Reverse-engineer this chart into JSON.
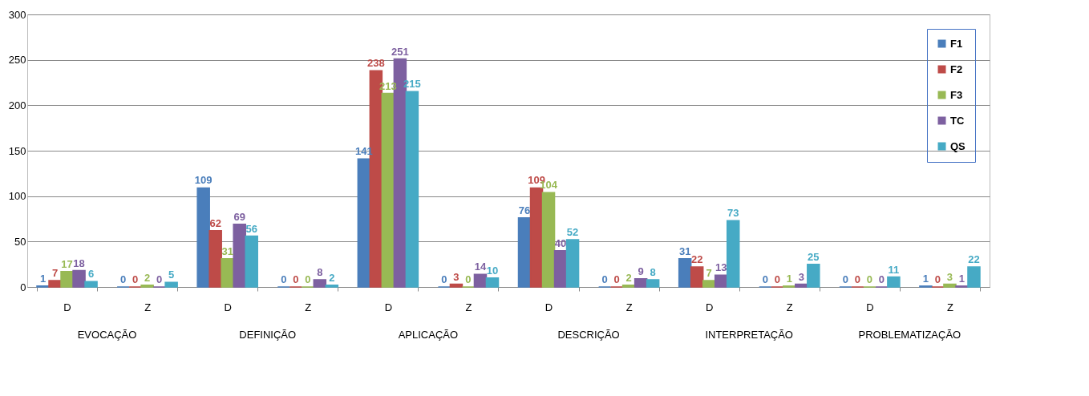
{
  "chart_data": {
    "type": "bar",
    "categories": [
      "D",
      "Z",
      "D",
      "Z",
      "D",
      "Z",
      "D",
      "Z",
      "D",
      "Z",
      "D",
      "Z"
    ],
    "annotations": [
      "EVOCAÇÃO",
      "DEFINIÇÃO",
      "APLICAÇÃO",
      "DESCRIÇÃO",
      "INTERPRETAÇÃO",
      "PROBLEMATIZAÇÃO"
    ],
    "series": [
      {
        "name": "F1",
        "color": "#4a7ebb",
        "values": [
          1,
          0,
          109,
          0,
          141,
          0,
          76,
          0,
          31,
          0,
          0,
          1
        ]
      },
      {
        "name": "F2",
        "color": "#be4b48",
        "values": [
          7,
          0,
          62,
          0,
          238,
          3,
          109,
          0,
          22,
          0,
          0,
          0
        ]
      },
      {
        "name": "F3",
        "color": "#98b954",
        "values": [
          17,
          2,
          31,
          0,
          213,
          0,
          104,
          2,
          7,
          1,
          0,
          3
        ]
      },
      {
        "name": "TC",
        "color": "#7d60a0",
        "values": [
          18,
          0,
          69,
          8,
          251,
          14,
          40,
          9,
          13,
          3,
          0,
          1
        ]
      },
      {
        "name": "QS",
        "color": "#46aac5",
        "values": [
          6,
          5,
          56,
          2,
          215,
          10,
          52,
          8,
          73,
          25,
          11,
          22
        ]
      }
    ],
    "ylim": [
      0,
      300
    ],
    "yticks": [
      0,
      50,
      100,
      150,
      200,
      250,
      300
    ],
    "grid": "y",
    "legend": "top right",
    "data_labels": true
  }
}
